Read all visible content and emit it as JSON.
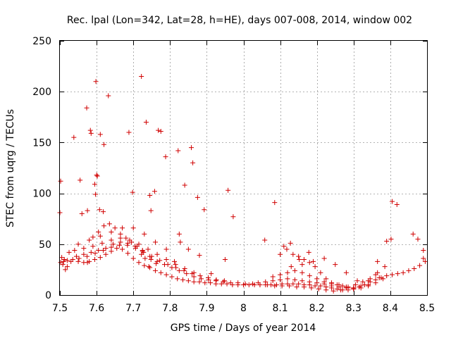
{
  "chart_data": {
    "type": "scatter",
    "title": "Rec. lpal (Lon=342, Lat=28, h=HE), days 007-008, 2014, window 002",
    "xlabel": "GPS time / Days of year 2014",
    "ylabel": "STEC from uqrg / TECUs",
    "xlim": [
      7.5,
      8.5
    ],
    "ylim": [
      0,
      250
    ],
    "xticks": [
      7.5,
      7.6,
      7.7,
      7.8,
      7.9,
      8.0,
      8.1,
      8.2,
      8.3,
      8.4,
      8.5
    ],
    "xtick_labels": [
      "7.5",
      "7.6",
      "7.7",
      "7.8",
      "7.9",
      "8",
      "8.1",
      "8.2",
      "8.3",
      "8.4",
      "8.5"
    ],
    "yticks": [
      0,
      50,
      100,
      150,
      200,
      250
    ],
    "ytick_labels": [
      "0",
      "50",
      "100",
      "150",
      "200",
      "250"
    ],
    "grid": true,
    "marker": "+",
    "color": "#d00000",
    "series": [
      {
        "name": "STEC",
        "x": [
          7.5,
          7.502,
          7.512,
          7.538,
          7.555,
          7.56,
          7.573,
          7.575,
          7.583,
          7.585,
          7.595,
          7.597,
          7.598,
          7.6,
          7.602,
          7.608,
          7.61,
          7.618,
          7.62,
          7.632,
          7.688,
          7.698,
          7.722,
          7.735,
          7.745,
          7.748,
          7.758,
          7.768,
          7.775,
          7.788,
          7.822,
          7.84,
          7.858,
          7.862,
          7.875,
          7.893,
          7.958,
          7.972,
          7.722,
          7.732,
          7.742,
          7.748,
          7.762,
          7.812,
          7.825,
          7.828,
          7.85,
          7.88,
          7.912,
          7.95,
          8.058,
          8.085,
          8.11,
          8.118,
          8.128,
          8.152,
          8.178,
          8.365,
          8.39,
          8.402,
          8.405,
          8.418,
          8.462,
          8.475,
          8.49,
          8.49,
          7.502,
          7.51,
          7.52,
          7.535,
          7.55,
          7.565,
          7.58,
          7.595,
          7.61,
          7.625,
          7.64,
          7.655,
          7.67,
          7.685,
          7.7,
          7.715,
          7.73,
          7.745,
          7.76,
          7.775,
          7.79,
          7.805,
          7.82,
          7.835,
          7.85,
          7.865,
          7.88,
          7.895,
          7.91,
          7.925,
          7.94,
          7.955,
          7.97,
          7.985,
          8.0,
          8.015,
          8.03,
          8.045,
          8.06,
          8.075,
          8.09,
          8.105,
          8.12,
          8.135,
          8.15,
          8.165,
          8.18,
          8.195,
          8.21,
          8.225,
          8.24,
          8.255,
          8.27,
          8.285,
          8.3,
          8.315,
          8.33,
          8.345,
          8.36,
          8.375,
          8.39,
          8.405,
          8.42,
          8.435,
          8.45,
          8.465,
          8.48,
          8.495,
          7.505,
          7.525,
          7.545,
          7.565,
          7.585,
          7.605,
          7.625,
          7.645,
          7.665,
          7.685,
          7.705,
          7.725,
          7.745,
          7.765,
          7.785,
          7.805,
          7.825,
          7.845,
          7.865,
          7.885,
          7.905,
          7.925,
          7.945,
          7.965,
          7.985,
          8.005,
          8.025,
          8.045,
          8.065,
          8.085,
          8.105,
          8.125,
          8.145,
          8.165,
          8.185,
          8.205,
          8.225,
          8.245,
          8.265,
          8.285,
          8.305,
          8.325,
          8.345,
          8.365,
          8.385,
          7.508,
          7.53,
          7.552,
          7.574,
          7.596,
          7.618,
          7.64,
          7.662,
          7.684,
          7.706,
          7.728,
          7.75,
          7.772,
          7.794,
          7.816,
          7.838,
          7.86,
          7.882,
          7.904,
          7.926,
          7.948,
          8.04,
          8.06,
          8.08,
          8.1,
          8.12,
          8.14,
          8.16,
          8.18,
          8.2,
          8.22,
          8.24,
          8.26,
          8.28,
          8.3,
          8.32,
          8.34,
          8.36,
          8.38,
          7.515,
          7.54,
          7.565,
          7.59,
          7.615,
          7.64,
          7.665,
          7.69,
          7.715,
          7.74,
          7.765,
          7.79,
          7.815,
          7.84,
          7.865,
          8.08,
          8.1,
          8.12,
          8.14,
          8.16,
          8.18,
          8.2,
          8.22,
          8.24,
          8.26,
          8.28,
          8.3,
          8.32,
          8.34,
          8.36,
          7.52,
          7.55,
          7.58,
          7.61,
          7.64,
          7.67,
          7.7,
          7.73,
          7.76,
          7.79,
          8.1,
          8.13,
          8.16,
          8.19,
          8.22,
          8.25,
          8.28,
          8.31,
          8.34,
          8.37,
          7.575,
          7.59,
          7.605,
          7.62,
          7.635,
          7.65,
          7.665,
          7.68,
          7.695,
          7.71,
          7.725,
          8.135,
          8.15,
          8.165,
          8.18,
          8.195,
          8.21,
          8.225,
          8.24,
          8.255,
          8.27,
          8.285,
          8.3
        ],
        "y": [
          81,
          112,
          35,
          155,
          113,
          80,
          184,
          83,
          162,
          159,
          109,
          99,
          210,
          118,
          117,
          84,
          158,
          82,
          148,
          196,
          160,
          101,
          215,
          170,
          98,
          83,
          102,
          162,
          161,
          136,
          142,
          108,
          145,
          130,
          96,
          84,
          103,
          77,
          40,
          36,
          28,
          35,
          31,
          33,
          60,
          52,
          45,
          39,
          21,
          35,
          54,
          91,
          48,
          45,
          51,
          35,
          42,
          33,
          53,
          55,
          92,
          89,
          60,
          55,
          36,
          44,
          32,
          33,
          34,
          35,
          33,
          32,
          33,
          35,
          37,
          40,
          43,
          46,
          45,
          41,
          36,
          32,
          29,
          27,
          24,
          22,
          20,
          18,
          16,
          15,
          14,
          13,
          13,
          12,
          12,
          11,
          11,
          11,
          10,
          10,
          10,
          10,
          10,
          10,
          10,
          10,
          10,
          11,
          11,
          11,
          11,
          10,
          10,
          9,
          9,
          8,
          7,
          6,
          5,
          5,
          6,
          8,
          10,
          13,
          15,
          17,
          19,
          20,
          21,
          22,
          24,
          26,
          29,
          33,
          37,
          42,
          38,
          40,
          42,
          44,
          46,
          50,
          52,
          51,
          48,
          43,
          38,
          33,
          30,
          27,
          24,
          21,
          18,
          16,
          15,
          14,
          13,
          12,
          12,
          11,
          11,
          10,
          10,
          9,
          9,
          9,
          8,
          8,
          7,
          6,
          5,
          4,
          5,
          7,
          10,
          13,
          16,
          22,
          28,
          30,
          33,
          36,
          38,
          41,
          44,
          47,
          49,
          49,
          46,
          42,
          38,
          34,
          30,
          27,
          24,
          21,
          19,
          17,
          15,
          14,
          12,
          13,
          14,
          15,
          16,
          15,
          14,
          13,
          12,
          11,
          9,
          8,
          7,
          6,
          7,
          9,
          12,
          16,
          25,
          44,
          46,
          48,
          51,
          54,
          56,
          54,
          50,
          45,
          40,
          35,
          30,
          26,
          22,
          18,
          20,
          22,
          24,
          22,
          19,
          16,
          13,
          11,
          10,
          8,
          7,
          9,
          14,
          20,
          28,
          50,
          54,
          58,
          62,
          66,
          66,
          60,
          52,
          45,
          40,
          28,
          30,
          33,
          36,
          30,
          22,
          14,
          10,
          17,
          32,
          57,
          62,
          68,
          70,
          66,
          60,
          56,
          52,
          48,
          44,
          40,
          38,
          35,
          32,
          28,
          22,
          16,
          12,
          10,
          9,
          8,
          7
        ]
      }
    ]
  }
}
